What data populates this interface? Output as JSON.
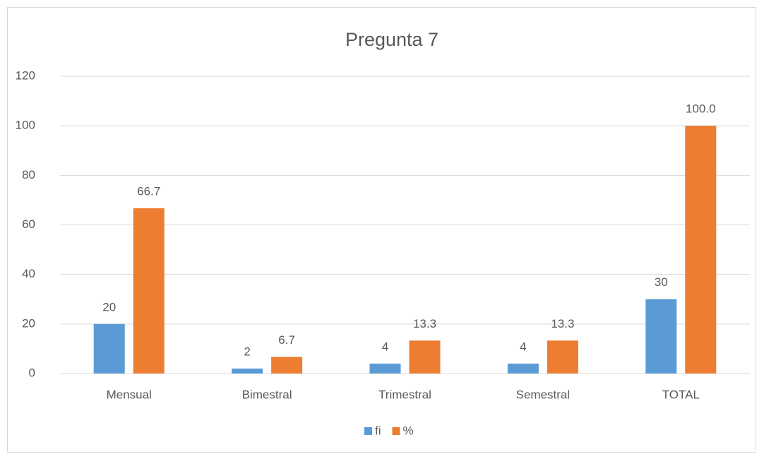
{
  "chart_data": {
    "type": "bar",
    "title": "Pregunta 7",
    "categories": [
      "Mensual",
      "Bimestral",
      "Trimestral",
      "Semestral",
      "TOTAL"
    ],
    "series": [
      {
        "name": "fi",
        "color": "#5b9bd5",
        "values": [
          20,
          2,
          4,
          4,
          30
        ]
      },
      {
        "name": "%",
        "color": "#ed7d31",
        "values": [
          66.7,
          6.7,
          13.3,
          13.3,
          100
        ],
        "value_labels": [
          "66.7",
          "6.7",
          "13.3",
          "13.3",
          "100.0"
        ]
      }
    ],
    "ylim": [
      0,
      120
    ],
    "yticks": [
      0,
      20,
      40,
      60,
      80,
      100,
      120
    ],
    "grid": true,
    "legend": "bottom"
  }
}
